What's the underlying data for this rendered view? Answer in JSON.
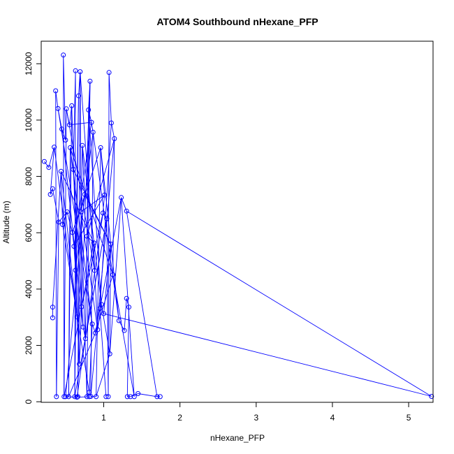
{
  "chart_data": {
    "type": "scatter",
    "title": "ATOM4 Southbound nHexane_PFP",
    "xlabel": "nHexane_PFP",
    "ylabel": "Altitude (m)",
    "xlim": [
      0.18,
      5.32
    ],
    "ylim": [
      -20,
      12800
    ],
    "x_ticks": [
      1,
      2,
      3,
      4,
      5
    ],
    "y_ticks": [
      0,
      2000,
      4000,
      6000,
      8000,
      10000,
      12000
    ],
    "grid": false,
    "legend": "none",
    "series_style": "line with open circle markers",
    "color": "#0000ff",
    "points": [
      {
        "x": 0.22,
        "y": 8530
      },
      {
        "x": 0.28,
        "y": 8320
      },
      {
        "x": 0.35,
        "y": 9040
      },
      {
        "x": 0.3,
        "y": 7360
      },
      {
        "x": 0.33,
        "y": 7560
      },
      {
        "x": 0.41,
        "y": 6380
      },
      {
        "x": 0.38,
        "y": 180
      },
      {
        "x": 0.37,
        "y": 11040
      },
      {
        "x": 0.4,
        "y": 10410
      },
      {
        "x": 0.45,
        "y": 9680
      },
      {
        "x": 0.5,
        "y": 9290
      },
      {
        "x": 0.47,
        "y": 12310
      },
      {
        "x": 0.48,
        "y": 180
      },
      {
        "x": 0.51,
        "y": 10400
      },
      {
        "x": 0.55,
        "y": 9830
      },
      {
        "x": 0.58,
        "y": 10510
      },
      {
        "x": 0.54,
        "y": 180
      },
      {
        "x": 0.56,
        "y": 9020
      },
      {
        "x": 0.6,
        "y": 8250
      },
      {
        "x": 0.63,
        "y": 11750
      },
      {
        "x": 0.62,
        "y": 180
      },
      {
        "x": 0.67,
        "y": 10860
      },
      {
        "x": 0.69,
        "y": 11720
      },
      {
        "x": 0.66,
        "y": 180
      },
      {
        "x": 0.72,
        "y": 9100
      },
      {
        "x": 0.75,
        "y": 7360
      },
      {
        "x": 0.7,
        "y": 6740
      },
      {
        "x": 0.78,
        "y": 180
      },
      {
        "x": 0.82,
        "y": 11380
      },
      {
        "x": 0.8,
        "y": 10360
      },
      {
        "x": 0.84,
        "y": 9920
      },
      {
        "x": 0.86,
        "y": 9570
      },
      {
        "x": 0.83,
        "y": 190
      },
      {
        "x": 0.9,
        "y": 180
      },
      {
        "x": 0.96,
        "y": 9020
      },
      {
        "x": 1.01,
        "y": 7340
      },
      {
        "x": 0.99,
        "y": 6700
      },
      {
        "x": 1.04,
        "y": 6500
      },
      {
        "x": 1.07,
        "y": 11690
      },
      {
        "x": 1.1,
        "y": 9900
      },
      {
        "x": 1.14,
        "y": 9340
      },
      {
        "x": 1.06,
        "y": 180
      },
      {
        "x": 1.23,
        "y": 7250
      },
      {
        "x": 1.3,
        "y": 6770
      },
      {
        "x": 5.3,
        "y": 190
      },
      {
        "x": 1.12,
        "y": 4510
      },
      {
        "x": 1.2,
        "y": 2880
      },
      {
        "x": 1.27,
        "y": 2530
      },
      {
        "x": 1.3,
        "y": 3670
      },
      {
        "x": 1.33,
        "y": 3360
      },
      {
        "x": 1.31,
        "y": 180
      },
      {
        "x": 1.4,
        "y": 180
      },
      {
        "x": 1.45,
        "y": 290
      },
      {
        "x": 1.7,
        "y": 180
      },
      {
        "x": 1.74,
        "y": 180
      },
      {
        "x": 1.0,
        "y": 3130
      },
      {
        "x": 1.09,
        "y": 5600
      },
      {
        "x": 1.08,
        "y": 1700
      },
      {
        "x": 0.97,
        "y": 3460
      },
      {
        "x": 0.92,
        "y": 2560
      },
      {
        "x": 0.88,
        "y": 4660
      },
      {
        "x": 0.87,
        "y": 5640
      },
      {
        "x": 0.78,
        "y": 5880
      },
      {
        "x": 0.76,
        "y": 2240
      },
      {
        "x": 0.73,
        "y": 2650
      },
      {
        "x": 0.71,
        "y": 3370
      },
      {
        "x": 0.68,
        "y": 1340
      },
      {
        "x": 0.65,
        "y": 3010
      },
      {
        "x": 0.63,
        "y": 4670
      },
      {
        "x": 0.61,
        "y": 5520
      },
      {
        "x": 0.59,
        "y": 6010
      },
      {
        "x": 0.52,
        "y": 6740
      },
      {
        "x": 0.46,
        "y": 6290
      },
      {
        "x": 0.44,
        "y": 8180
      },
      {
        "x": 0.33,
        "y": 3360
      },
      {
        "x": 0.33,
        "y": 2980
      },
      {
        "x": 0.5,
        "y": 180
      },
      {
        "x": 0.65,
        "y": 160
      },
      {
        "x": 0.81,
        "y": 180
      },
      {
        "x": 0.81,
        "y": 340
      },
      {
        "x": 0.85,
        "y": 2760
      },
      {
        "x": 0.89,
        "y": 2440
      },
      {
        "x": 0.95,
        "y": 3310
      },
      {
        "x": 1.03,
        "y": 180
      },
      {
        "x": 1.35,
        "y": 180
      }
    ],
    "lines": [
      [
        [
          0.22,
          8530
        ],
        [
          0.28,
          8320
        ],
        [
          0.35,
          9040
        ],
        [
          0.3,
          7360
        ],
        [
          0.33,
          7560
        ],
        [
          0.41,
          6380
        ],
        [
          0.38,
          180
        ]
      ],
      [
        [
          0.38,
          180
        ],
        [
          0.37,
          11040
        ],
        [
          0.4,
          10410
        ],
        [
          0.45,
          9680
        ],
        [
          0.5,
          9290
        ],
        [
          0.47,
          12310
        ],
        [
          0.48,
          180
        ]
      ],
      [
        [
          0.48,
          180
        ],
        [
          0.51,
          10400
        ],
        [
          0.55,
          9830
        ],
        [
          0.58,
          10510
        ],
        [
          0.54,
          180
        ]
      ],
      [
        [
          0.54,
          180
        ],
        [
          0.56,
          9020
        ],
        [
          0.6,
          8250
        ],
        [
          0.63,
          11750
        ],
        [
          0.62,
          180
        ]
      ],
      [
        [
          0.62,
          180
        ],
        [
          0.67,
          10860
        ],
        [
          0.69,
          11720
        ],
        [
          0.66,
          180
        ]
      ],
      [
        [
          0.66,
          180
        ],
        [
          0.72,
          9100
        ],
        [
          0.75,
          7360
        ],
        [
          0.7,
          6740
        ],
        [
          0.78,
          180
        ]
      ],
      [
        [
          0.78,
          180
        ],
        [
          0.82,
          11380
        ],
        [
          0.8,
          10360
        ],
        [
          0.84,
          9920
        ],
        [
          0.86,
          9570
        ],
        [
          0.83,
          190
        ]
      ],
      [
        [
          0.83,
          190
        ],
        [
          0.9,
          180
        ]
      ],
      [
        [
          0.9,
          180
        ],
        [
          0.96,
          9020
        ],
        [
          1.01,
          7340
        ],
        [
          0.99,
          6700
        ],
        [
          1.04,
          6500
        ],
        [
          1.06,
          180
        ]
      ],
      [
        [
          1.06,
          180
        ],
        [
          1.07,
          11690
        ],
        [
          1.1,
          9900
        ],
        [
          1.14,
          9340
        ],
        [
          1.12,
          4510
        ],
        [
          1.4,
          180
        ]
      ],
      [
        [
          1.4,
          180
        ],
        [
          1.23,
          7250
        ],
        [
          1.3,
          6770
        ],
        [
          5.3,
          190
        ],
        [
          1.0,
          3130
        ],
        [
          1.09,
          5600
        ],
        [
          1.08,
          1700
        ],
        [
          0.97,
          3460
        ],
        [
          0.92,
          2560
        ],
        [
          0.88,
          4660
        ],
        [
          0.87,
          5640
        ],
        [
          0.78,
          5880
        ],
        [
          0.76,
          2240
        ],
        [
          0.73,
          2650
        ],
        [
          0.71,
          3370
        ],
        [
          0.68,
          1340
        ],
        [
          0.65,
          3010
        ],
        [
          0.63,
          4670
        ],
        [
          0.61,
          5520
        ],
        [
          0.59,
          6010
        ],
        [
          0.52,
          6740
        ],
        [
          0.46,
          6290
        ],
        [
          0.44,
          8180
        ],
        [
          0.33,
          3360
        ],
        [
          0.33,
          2980
        ]
      ],
      [
        [
          0.5,
          180
        ],
        [
          0.65,
          160
        ],
        [
          0.81,
          180
        ],
        [
          0.81,
          340
        ],
        [
          0.85,
          2760
        ],
        [
          0.89,
          2440
        ],
        [
          0.95,
          3310
        ],
        [
          1.03,
          180
        ]
      ],
      [
        [
          1.2,
          2880
        ],
        [
          1.27,
          2530
        ],
        [
          1.3,
          3670
        ],
        [
          1.33,
          3360
        ],
        [
          1.31,
          180
        ],
        [
          1.35,
          180
        ],
        [
          1.45,
          290
        ]
      ],
      [
        [
          1.45,
          290
        ],
        [
          1.7,
          180
        ],
        [
          1.74,
          180
        ]
      ],
      [
        [
          1.7,
          180
        ],
        [
          1.3,
          6770
        ]
      ],
      [
        [
          0.35,
          9040
        ],
        [
          0.65,
          3010
        ],
        [
          0.44,
          8180
        ],
        [
          0.87,
          5640
        ],
        [
          0.48,
          180
        ]
      ],
      [
        [
          0.55,
          9830
        ],
        [
          0.84,
          9920
        ],
        [
          0.61,
          5520
        ],
        [
          1.01,
          7340
        ],
        [
          0.7,
          6740
        ],
        [
          0.92,
          2560
        ]
      ],
      [
        [
          0.58,
          10510
        ],
        [
          0.68,
          1340
        ],
        [
          0.82,
          11380
        ],
        [
          0.76,
          2240
        ],
        [
          1.04,
          6500
        ],
        [
          0.62,
          180
        ]
      ],
      [
        [
          0.67,
          10860
        ],
        [
          0.63,
          4670
        ],
        [
          0.86,
          9570
        ],
        [
          1.2,
          2880
        ],
        [
          0.96,
          9020
        ],
        [
          0.59,
          6010
        ]
      ],
      [
        [
          0.72,
          9100
        ],
        [
          0.97,
          3460
        ],
        [
          0.8,
          10360
        ],
        [
          0.78,
          5880
        ],
        [
          1.14,
          9340
        ],
        [
          0.83,
          190
        ]
      ],
      [
        [
          0.45,
          9680
        ],
        [
          0.73,
          2650
        ],
        [
          0.6,
          8250
        ],
        [
          1.09,
          5600
        ],
        [
          0.75,
          7360
        ],
        [
          0.5,
          180
        ]
      ],
      [
        [
          0.51,
          10400
        ],
        [
          0.88,
          4660
        ],
        [
          0.69,
          11720
        ],
        [
          0.71,
          3370
        ],
        [
          0.99,
          6700
        ],
        [
          0.65,
          160
        ]
      ],
      [
        [
          0.4,
          10410
        ],
        [
          0.85,
          2760
        ],
        [
          0.56,
          9020
        ],
        [
          1.12,
          4510
        ],
        [
          0.89,
          2440
        ],
        [
          0.54,
          180
        ]
      ],
      [
        [
          1.1,
          9900
        ],
        [
          0.95,
          3310
        ],
        [
          1.23,
          7250
        ],
        [
          1.08,
          1700
        ],
        [
          0.9,
          180
        ]
      ],
      [
        [
          0.41,
          6380
        ],
        [
          0.52,
          6740
        ],
        [
          0.46,
          6290
        ],
        [
          0.81,
          340
        ]
      ]
    ]
  }
}
